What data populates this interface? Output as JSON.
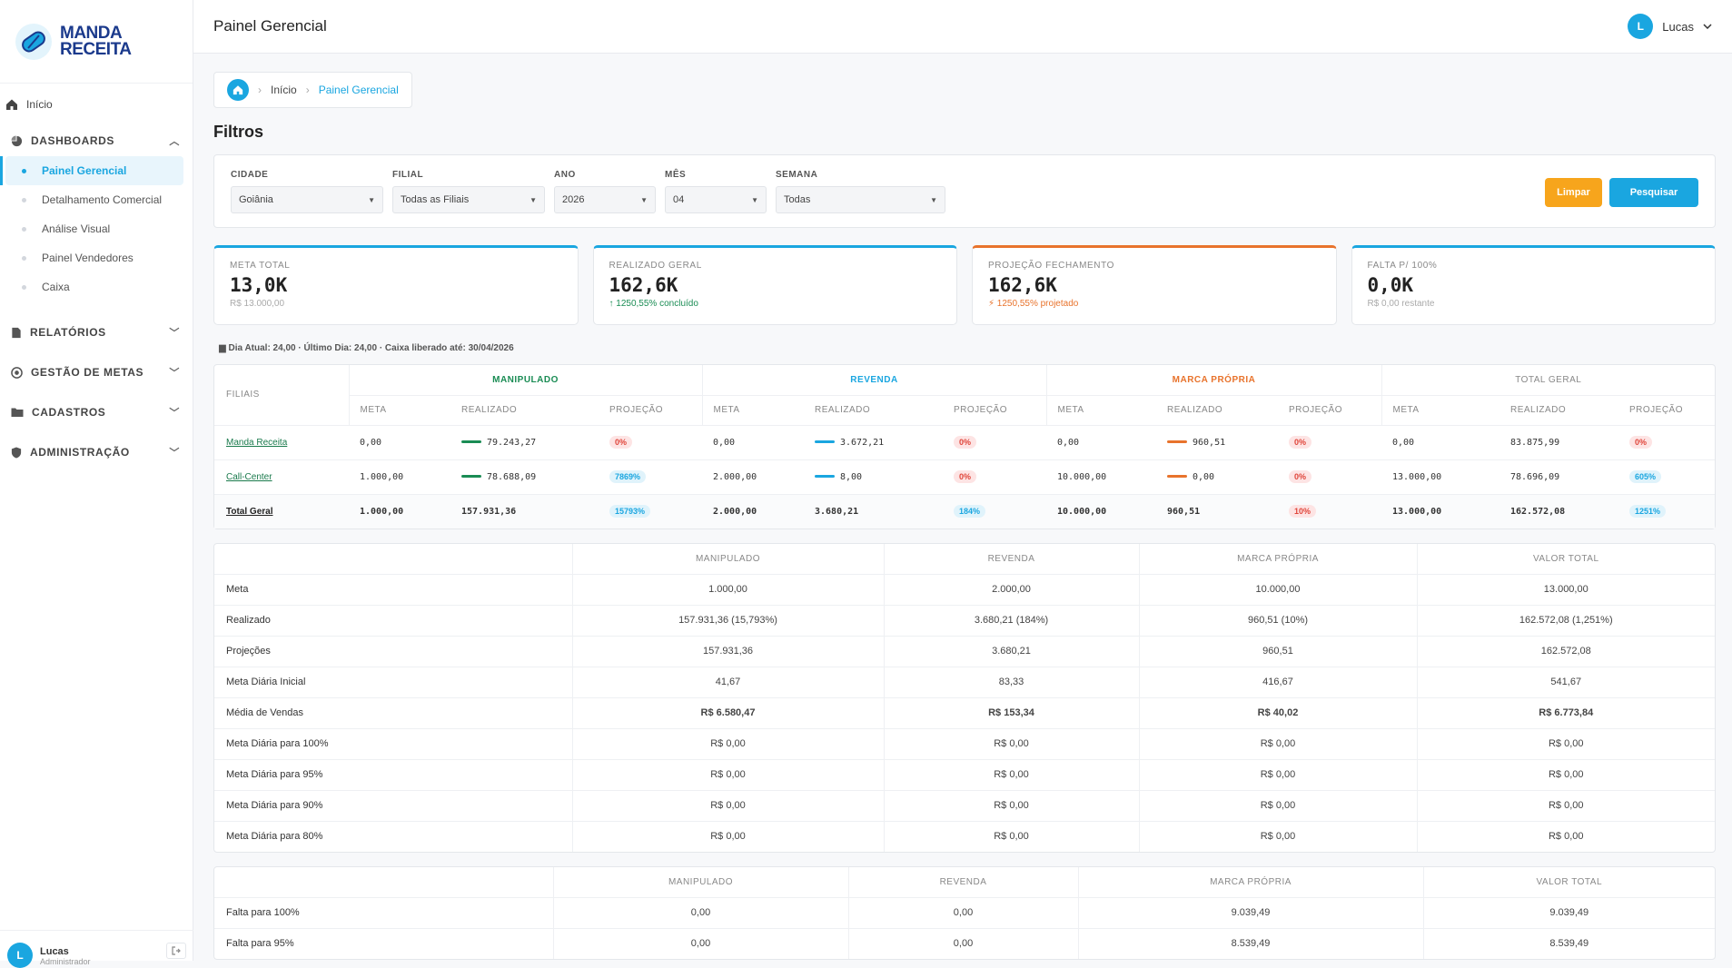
{
  "logo": {
    "line1": "MANDA",
    "line2": "RECEITA"
  },
  "sidebar": {
    "home": "Início",
    "sections": [
      {
        "label": "DASHBOARDS",
        "expanded": true,
        "items": [
          "Painel Gerencial",
          "Detalhamento Comercial",
          "Análise Visual",
          "Painel Vendedores",
          "Caixa"
        ],
        "active": 0
      },
      {
        "label": "RELATÓRIOS"
      },
      {
        "label": "GESTÃO DE METAS"
      },
      {
        "label": "CADASTROS"
      },
      {
        "label": "ADMINISTRAÇÃO"
      }
    ],
    "user": {
      "initial": "L",
      "name": "Lucas",
      "role": "Administrador"
    }
  },
  "header": {
    "title": "Painel Gerencial",
    "user_initial": "L",
    "user_name": "Lucas"
  },
  "breadcrumb": {
    "items": [
      "Início",
      "Painel Gerencial"
    ]
  },
  "filters": {
    "title": "Filtros",
    "cidade": {
      "label": "CIDADE",
      "value": "Goiânia"
    },
    "filial": {
      "label": "FILIAL",
      "value": "Todas as Filiais"
    },
    "ano": {
      "label": "ANO",
      "value": "2026"
    },
    "mes": {
      "label": "MÊS",
      "value": "04"
    },
    "semana": {
      "label": "SEMANA",
      "value": "Todas"
    },
    "clear": "Limpar",
    "search": "Pesquisar"
  },
  "kpis": [
    {
      "label": "META TOTAL",
      "value": "13,0K",
      "sub": "R$ 13.000,00",
      "color": "#1aa6e0"
    },
    {
      "label": "REALIZADO GERAL",
      "value": "162,6K",
      "sub": "↑ 1250,55% concluído",
      "color": "#1aa6e0",
      "sub_color": "#1a8c54"
    },
    {
      "label": "PROJEÇÃO FECHAMENTO",
      "value": "162,6K",
      "sub": "⚡ 1250,55% projetado",
      "color": "#e8732c",
      "sub_color": "#e8732c"
    },
    {
      "label": "FALTA P/ 100%",
      "value": "0,0K",
      "sub": "R$ 0,00 restante",
      "color": "#1aa6e0"
    }
  ],
  "info": "▆ Dia Atual: 24,00 · Último Dia: 24,00 · Caixa liberado até: 30/04/2026",
  "branch_table": {
    "filiais_label": "FILIAIS",
    "groups": [
      "MANIPULADO",
      "REVENDA",
      "MARCA PRÓPRIA",
      "TOTAL GERAL"
    ],
    "sub": [
      "META",
      "REALIZADO",
      "PROJEÇÃO"
    ],
    "rows": [
      {
        "name": "Manda Receita",
        "c": [
          [
            "0,00",
            "79.243,27",
            "0%"
          ],
          [
            "0,00",
            "3.672,21",
            "0%"
          ],
          [
            "0,00",
            "960,51",
            "0%"
          ],
          [
            "0,00",
            "83.875,99",
            "0%"
          ]
        ]
      },
      {
        "name": "Call-Center",
        "c": [
          [
            "1.000,00",
            "78.688,09",
            "7869%"
          ],
          [
            "2.000,00",
            "8,00",
            "0%"
          ],
          [
            "10.000,00",
            "0,00",
            "0%"
          ],
          [
            "13.000,00",
            "78.696,09",
            "605%"
          ]
        ]
      },
      {
        "name": "Total Geral",
        "c": [
          [
            "1.000,00",
            "157.931,36",
            "15793%"
          ],
          [
            "2.000,00",
            "3.680,21",
            "184%"
          ],
          [
            "10.000,00",
            "960,51",
            "10%"
          ],
          [
            "13.000,00",
            "162.572,08",
            "1251%"
          ]
        ]
      }
    ]
  },
  "summary_table": {
    "headers": [
      "MANIPULADO",
      "REVENDA",
      "MARCA PRÓPRIA",
      "VALOR TOTAL"
    ],
    "rows": [
      [
        "Meta",
        "1.000,00",
        "2.000,00",
        "10.000,00",
        "13.000,00"
      ],
      [
        "Realizado",
        "157.931,36 (15,793%)",
        "3.680,21 (184%)",
        "960,51 (10%)",
        "162.572,08 (1,251%)"
      ],
      [
        "Projeções",
        "157.931,36",
        "3.680,21",
        "960,51",
        "162.572,08"
      ],
      [
        "Meta Diária Inicial",
        "41,67",
        "83,33",
        "416,67",
        "541,67"
      ],
      [
        "Média de Vendas",
        "R$ 6.580,47",
        "R$ 153,34",
        "R$ 40,02",
        "R$ 6.773,84"
      ],
      [
        "Meta Diária para 100%",
        "R$ 0,00",
        "R$ 0,00",
        "R$ 0,00",
        "R$ 0,00"
      ],
      [
        "Meta Diária para 95%",
        "R$ 0,00",
        "R$ 0,00",
        "R$ 0,00",
        "R$ 0,00"
      ],
      [
        "Meta Diária para 90%",
        "R$ 0,00",
        "R$ 0,00",
        "R$ 0,00",
        "R$ 0,00"
      ],
      [
        "Meta Diária para 80%",
        "R$ 0,00",
        "R$ 0,00",
        "R$ 0,00",
        "R$ 0,00"
      ]
    ]
  },
  "falta_table": {
    "headers": [
      "MANIPULADO",
      "REVENDA",
      "MARCA PRÓPRIA",
      "VALOR TOTAL"
    ],
    "rows": [
      [
        "Falta para 100%",
        "0,00",
        "0,00",
        "9.039,49",
        "9.039,49"
      ],
      [
        "Falta para 95%",
        "0,00",
        "0,00",
        "8.539,49",
        "8.539,49"
      ]
    ]
  }
}
